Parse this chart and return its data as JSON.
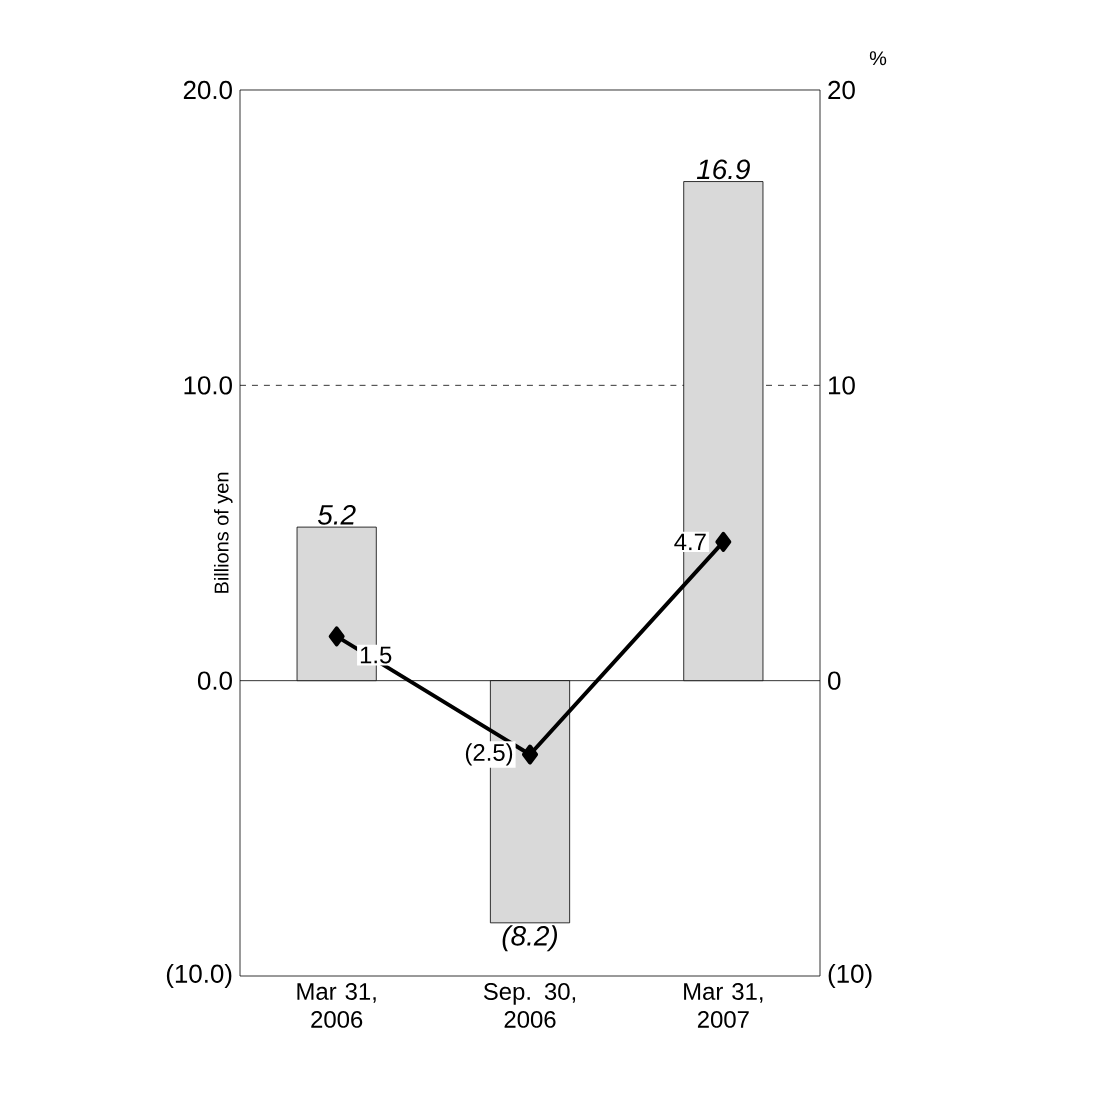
{
  "chart_data": {
    "type": "bar",
    "ylabel": "Billions of yen",
    "y2label": "%",
    "categories": [
      "Mar 31, 2006",
      "Sep. 30, 2006",
      "Mar 31, 2007"
    ],
    "series": [
      {
        "color": "#d9d9d9",
        "values": [
          5.2,
          -8.2,
          16.9
        ],
        "value_labels": [
          "5.2",
          "(8.2)",
          "16.9"
        ]
      },
      {
        "type": "line",
        "axis": "y2",
        "color": "#000000",
        "marker": "diamond",
        "line_style": "solid",
        "values": [
          1.5,
          -2.5,
          4.7
        ],
        "value_labels": [
          "1.5",
          "(2.5)",
          "4.7"
        ]
      }
    ],
    "ylim": [
      -10,
      20
    ],
    "yticks": [
      {
        "value": -10,
        "label": "(10.0)"
      },
      {
        "value": 0,
        "label": "0.0"
      },
      {
        "value": 10,
        "label": "10.0"
      },
      {
        "value": 20,
        "label": "20.0"
      }
    ],
    "y2lim": [
      -10,
      20
    ],
    "y2ticks": [
      {
        "value": -10,
        "label": "(10)"
      },
      0,
      10,
      20
    ],
    "ref_lines": [
      {
        "axis": "y",
        "value": 0,
        "line_style": "solid",
        "color": "#000000"
      },
      {
        "axis": "y",
        "value": 10,
        "line_style": "dashed",
        "color": "#000000"
      }
    ],
    "grid": false
  }
}
